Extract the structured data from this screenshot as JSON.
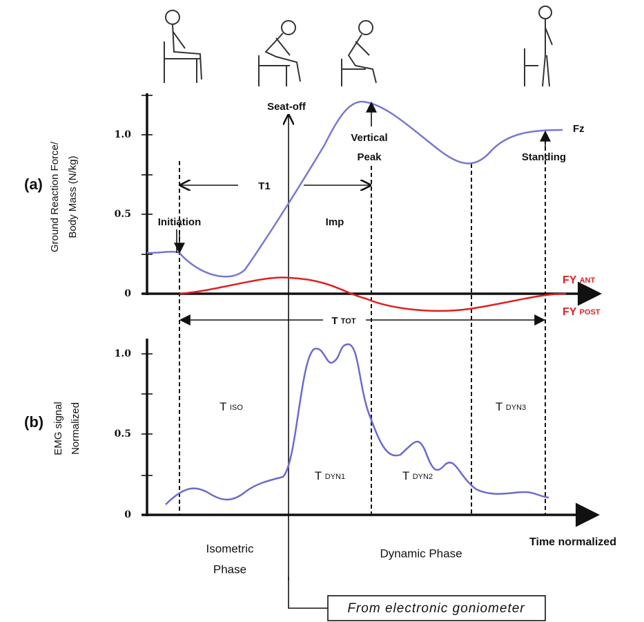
{
  "panel_a": {
    "label": "(a)",
    "y_label": [
      "Ground Reaction Force/",
      "Body Mass  (N/kg)"
    ],
    "ticks": [
      "1.0",
      "0.5",
      "0"
    ],
    "annotations": {
      "seat_off": "Seat-off",
      "vertical_peak": [
        "Vertical",
        "Peak"
      ],
      "fz": "Fz",
      "standing": "Standing",
      "initiation": "Initiation",
      "t1": "T1",
      "imp": "Imp",
      "fy_ant": {
        "main": "FY",
        "sub": "ANT"
      },
      "fy_post": {
        "main": "FY",
        "sub": "POST"
      },
      "t_tot": {
        "main": "T",
        "sub": "TOT"
      }
    }
  },
  "panel_b": {
    "label": "(b)",
    "y_label": [
      "EMG signal",
      "Normalized"
    ],
    "ticks": [
      "1.0",
      "0.5",
      "0"
    ],
    "annotations": {
      "t_iso": {
        "main": "T",
        "sub": "ISO"
      },
      "t_dyn1": {
        "main": "T",
        "sub": "DYN1"
      },
      "t_dyn2": {
        "main": "T",
        "sub": "DYN2"
      },
      "t_dyn3": {
        "main": "T",
        "sub": "DYN3"
      }
    },
    "x_label": "Time normalized",
    "phases": {
      "isometric": [
        "Isometric",
        "Phase"
      ],
      "dynamic": "Dynamic Phase"
    }
  },
  "goniometer_box": "From electronic goniometer"
}
